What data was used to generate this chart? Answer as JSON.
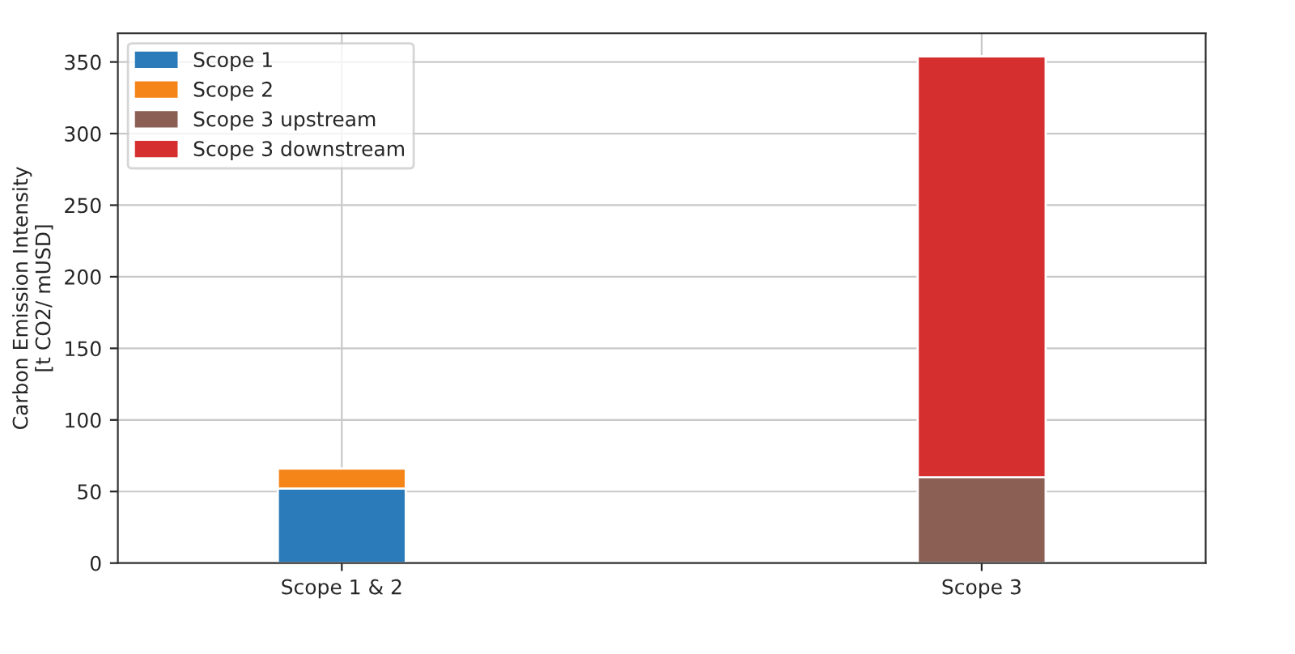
{
  "chart_data": {
    "type": "bar",
    "stacked": true,
    "ylabel": "Carbon Emission Intensity\n[t CO2/ mUSD]",
    "categories": [
      "Scope 1 & 2",
      "Scope 3"
    ],
    "series": [
      {
        "name": "Scope 1",
        "color": "#2b7bba",
        "values": [
          52,
          null
        ]
      },
      {
        "name": "Scope 2",
        "color": "#f58518",
        "values": [
          14,
          null
        ]
      },
      {
        "name": "Scope 3 upstream",
        "color": "#8c5f55",
        "values": [
          null,
          60
        ]
      },
      {
        "name": "Scope 3 downstream",
        "color": "#d62f2f",
        "values": [
          null,
          294
        ]
      }
    ],
    "ylim": [
      0,
      370
    ],
    "yticks": [
      0,
      50,
      100,
      150,
      200,
      250,
      300,
      350
    ],
    "grid": true,
    "legend": "top left"
  }
}
